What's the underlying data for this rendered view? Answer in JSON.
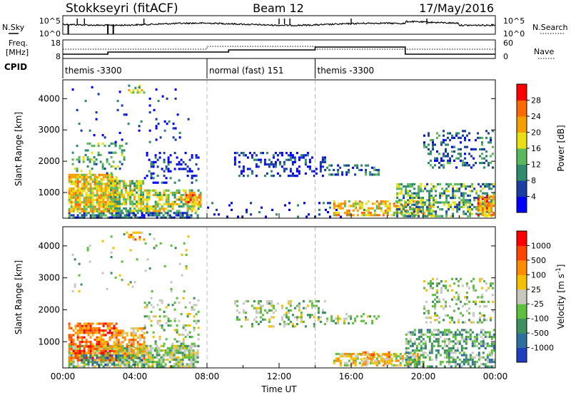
{
  "header": {
    "station": "Stokkseyri (fitACF)",
    "beam": "Beam 12",
    "date": "17/May/2016"
  },
  "labels": {
    "nsky": "N.Sky",
    "nsearch": "N.Search",
    "freq_line1": "Freq.",
    "freq_line2": "[MHz]",
    "nave": "Nave",
    "cpid": "CPID"
  },
  "noise_axis": {
    "left_ticks": [
      "10^5",
      "10^0"
    ],
    "right_ticks": [
      "10^5",
      "10^0"
    ]
  },
  "freq_axis": {
    "left_ticks": [
      "18",
      "8"
    ],
    "right_ticks": [
      "60",
      "0"
    ]
  },
  "cpid_segments": [
    {
      "label": "themis -3300",
      "start_hour": 0
    },
    {
      "label": "normal (fast) 151",
      "start_hour": 8
    },
    {
      "label": "themis -3300",
      "start_hour": 14
    }
  ],
  "chart_data": [
    {
      "type": "heatmap",
      "panel": "power",
      "xlabel": "",
      "ylabel": "Slant Range [km]",
      "x_range_hours": [
        0,
        24
      ],
      "ylim_km": [
        180,
        4600
      ],
      "y_ticks": [
        "1000",
        "2000",
        "3000",
        "4000"
      ],
      "colorbar": {
        "label": "Power [dB]",
        "ticks": [
          "4",
          "8",
          "12",
          "16",
          "20",
          "24",
          "28"
        ],
        "colors": [
          "#0000ff",
          "#1a3fa0",
          "#2f8a6e",
          "#5cb85c",
          "#e8e010",
          "#f5a000",
          "#ff6a00",
          "#ff0000"
        ]
      },
      "regions": [
        {
          "t0": 0.3,
          "t1": 7.5,
          "r0": 200,
          "r1": 380,
          "level": 2,
          "density": 0.7
        },
        {
          "t0": 0.3,
          "t1": 3.0,
          "r0": 380,
          "r1": 1600,
          "level": 5,
          "density": 0.85
        },
        {
          "t0": 2.5,
          "t1": 4.5,
          "r0": 380,
          "r1": 1400,
          "level": 4,
          "density": 0.75
        },
        {
          "t0": 4.5,
          "t1": 7.6,
          "r0": 380,
          "r1": 1100,
          "level": 4,
          "density": 0.65
        },
        {
          "t0": 6.8,
          "t1": 7.6,
          "r0": 700,
          "r1": 950,
          "level": 6,
          "density": 0.8
        },
        {
          "t0": 0.5,
          "t1": 3.5,
          "r0": 1600,
          "r1": 2600,
          "level": 3,
          "density": 0.25
        },
        {
          "t0": 4.5,
          "t1": 7.5,
          "r0": 1300,
          "r1": 2300,
          "level": 1,
          "density": 0.22
        },
        {
          "t0": 9.5,
          "t1": 14.5,
          "r0": 1500,
          "r1": 2300,
          "level": 1,
          "density": 0.28
        },
        {
          "t0": 14.5,
          "t1": 17.5,
          "r0": 1600,
          "r1": 1900,
          "level": 2,
          "density": 0.3
        },
        {
          "t0": 8.0,
          "t1": 17.0,
          "r0": 200,
          "r1": 700,
          "level": 1,
          "density": 0.08
        },
        {
          "t0": 15.0,
          "t1": 20.5,
          "r0": 250,
          "r1": 750,
          "level": 5,
          "density": 0.55
        },
        {
          "t0": 18.5,
          "t1": 23.9,
          "r0": 250,
          "r1": 1300,
          "level": 3,
          "density": 0.5
        },
        {
          "t0": 20.0,
          "t1": 23.9,
          "r0": 1800,
          "r1": 3000,
          "level": 2,
          "density": 0.25
        },
        {
          "t0": 23.0,
          "t1": 23.9,
          "r0": 250,
          "r1": 900,
          "level": 6,
          "density": 0.7
        },
        {
          "t0": 3.5,
          "t1": 4.5,
          "r0": 4200,
          "r1": 4450,
          "level": 4,
          "density": 0.35
        },
        {
          "t0": 0.5,
          "t1": 7.0,
          "r0": 2600,
          "r1": 4400,
          "level": 1,
          "density": 0.04
        }
      ]
    },
    {
      "type": "heatmap",
      "panel": "velocity",
      "xlabel": "Time UT",
      "ylabel": "Slant Range [km]",
      "x_range_hours": [
        0,
        24
      ],
      "x_ticks": [
        "00:00",
        "04:00",
        "08:00",
        "12:00",
        "16:00",
        "20:00",
        "00:00"
      ],
      "ylim_km": [
        180,
        4600
      ],
      "y_ticks": [
        "1000",
        "2000",
        "3000",
        "4000"
      ],
      "colorbar": {
        "label": "Velocity [m s",
        "label_sup": "-1",
        "label_end": "]",
        "ticks": [
          "1000",
          "500",
          "100",
          "25",
          "-25",
          "-100",
          "-500",
          "-1000"
        ],
        "colors": [
          "#1f3fbf",
          "#2f6f9f",
          "#3f8f5f",
          "#5fbf3f",
          "#c8c8c0",
          "#f5c000",
          "#ff8c00",
          "#ff4500",
          "#ff0000"
        ]
      },
      "regions": [
        {
          "t0": 0.3,
          "t1": 7.5,
          "r0": 200,
          "r1": 900,
          "level": 4,
          "density": 0.75
        },
        {
          "t0": 0.3,
          "t1": 3.0,
          "r0": 400,
          "r1": 1600,
          "level": 7,
          "density": 0.6
        },
        {
          "t0": 2.8,
          "t1": 4.5,
          "r0": 500,
          "r1": 1450,
          "level": 6,
          "density": 0.55
        },
        {
          "t0": 1.0,
          "t1": 4.5,
          "r0": 250,
          "r1": 600,
          "level": 2,
          "density": 0.4
        },
        {
          "t0": 4.5,
          "t1": 7.5,
          "r0": 700,
          "r1": 2400,
          "level": 4,
          "density": 0.18
        },
        {
          "t0": 9.5,
          "t1": 14.5,
          "r0": 1500,
          "r1": 2300,
          "level": 4,
          "density": 0.3
        },
        {
          "t0": 14.5,
          "t1": 17.5,
          "r0": 1600,
          "r1": 1900,
          "level": 4,
          "density": 0.3
        },
        {
          "t0": 15.0,
          "t1": 19.8,
          "r0": 250,
          "r1": 650,
          "level": 5,
          "density": 0.6
        },
        {
          "t0": 16.5,
          "t1": 18.3,
          "r0": 300,
          "r1": 700,
          "level": 6,
          "density": 0.45
        },
        {
          "t0": 19.0,
          "t1": 23.9,
          "r0": 250,
          "r1": 1400,
          "level": 3,
          "density": 0.5
        },
        {
          "t0": 20.0,
          "t1": 23.9,
          "r0": 1600,
          "r1": 3000,
          "level": 4,
          "density": 0.25
        },
        {
          "t0": 3.5,
          "t1": 4.5,
          "r0": 4200,
          "r1": 4450,
          "level": 6,
          "density": 0.35
        },
        {
          "t0": 0.5,
          "t1": 7.0,
          "r0": 2600,
          "r1": 4400,
          "level": 4,
          "density": 0.04
        }
      ]
    }
  ]
}
